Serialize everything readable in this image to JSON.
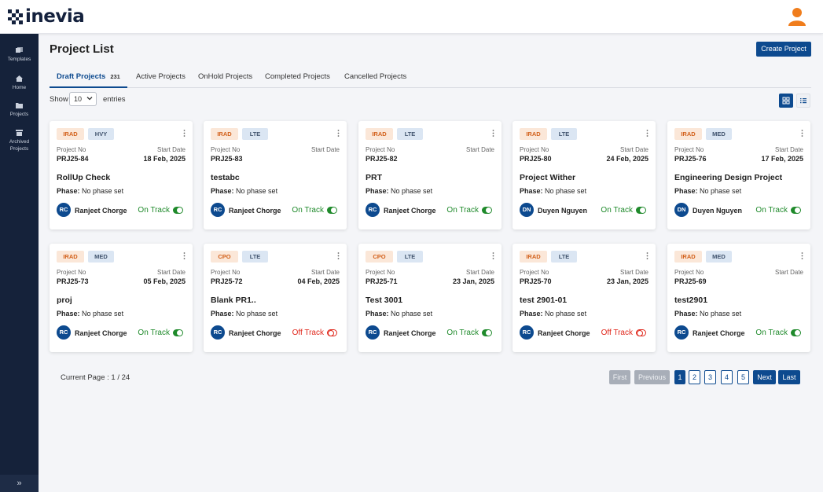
{
  "app": {
    "logo_text": "inevia"
  },
  "sidebar": {
    "items": [
      {
        "label": "Templates",
        "icon": "templates-icon"
      },
      {
        "label": "Home",
        "icon": "home-icon"
      },
      {
        "label": "Projects",
        "icon": "folder-icon"
      },
      {
        "label": "Archived Projects",
        "icon": "archive-icon"
      }
    ],
    "expand_icon": "»"
  },
  "page": {
    "title": "Project List",
    "create_label": "Create Project"
  },
  "tabs": [
    {
      "label": "Draft Projects",
      "count": "231",
      "active": true
    },
    {
      "label": "Active Projects"
    },
    {
      "label": "OnHold Projects"
    },
    {
      "label": "Completed Projects"
    },
    {
      "label": "Cancelled Projects"
    }
  ],
  "list_controls": {
    "show_label": "Show",
    "page_size": "10",
    "entries_label": "entries"
  },
  "card_labels": {
    "project_no": "Project No",
    "start_date": "Start Date",
    "phase": "Phase:"
  },
  "projects": [
    {
      "tag1": "IRAD",
      "tag2": "HVY",
      "no": "PRJ25-84",
      "date": "18 Feb, 2025",
      "name": "RollUp Check",
      "phase": "No phase set",
      "initials": "RC",
      "owner": "Ranjeet Chorge",
      "status": "On Track"
    },
    {
      "tag1": "IRAD",
      "tag2": "LTE",
      "no": "PRJ25-83",
      "date": "",
      "name": "testabc",
      "phase": "No phase set",
      "initials": "RC",
      "owner": "Ranjeet Chorge",
      "status": "On Track"
    },
    {
      "tag1": "IRAD",
      "tag2": "LTE",
      "no": "PRJ25-82",
      "date": "",
      "name": "PRT",
      "phase": "No phase set",
      "initials": "RC",
      "owner": "Ranjeet Chorge",
      "status": "On Track"
    },
    {
      "tag1": "IRAD",
      "tag2": "LTE",
      "no": "PRJ25-80",
      "date": "24 Feb, 2025",
      "name": "Project Wither",
      "phase": "No phase set",
      "initials": "DN",
      "owner": "Duyen Nguyen",
      "status": "On Track"
    },
    {
      "tag1": "IRAD",
      "tag2": "MED",
      "no": "PRJ25-76",
      "date": "17 Feb, 2025",
      "name": "Engineering Design Project",
      "phase": "No phase set",
      "initials": "DN",
      "owner": "Duyen Nguyen",
      "status": "On Track"
    },
    {
      "tag1": "IRAD",
      "tag2": "MED",
      "no": "PRJ25-73",
      "date": "05 Feb, 2025",
      "name": "proj",
      "phase": "No phase set",
      "initials": "RC",
      "owner": "Ranjeet Chorge",
      "status": "On Track"
    },
    {
      "tag1": "CPO",
      "tag2": "LTE",
      "no": "PRJ25-72",
      "date": "04 Feb, 2025",
      "name": "Blank PR1..",
      "phase": "No phase set",
      "initials": "RC",
      "owner": "Ranjeet Chorge",
      "status": "Off Track"
    },
    {
      "tag1": "CPO",
      "tag2": "LTE",
      "no": "PRJ25-71",
      "date": "23 Jan, 2025",
      "name": "Test 3001",
      "phase": "No phase set",
      "initials": "RC",
      "owner": "Ranjeet Chorge",
      "status": "On Track"
    },
    {
      "tag1": "IRAD",
      "tag2": "LTE",
      "no": "PRJ25-70",
      "date": "23 Jan, 2025",
      "name": "test 2901-01",
      "phase": "No phase set",
      "initials": "RC",
      "owner": "Ranjeet Chorge",
      "status": "Off Track"
    },
    {
      "tag1": "IRAD",
      "tag2": "MED",
      "no": "PRJ25-69",
      "date": "",
      "name": "test2901",
      "phase": "No phase set",
      "initials": "RC",
      "owner": "Ranjeet Chorge",
      "status": "On Track"
    }
  ],
  "pagination": {
    "current_page_text": "Current Page : 1 / 24",
    "first": "First",
    "previous": "Previous",
    "pages": [
      "1",
      "2",
      "3",
      "4",
      "5"
    ],
    "next": "Next",
    "last": "Last"
  },
  "colors": {
    "primary": "#0d4a8f",
    "sidebar": "#15223a",
    "on_track": "#1f8a2b",
    "off_track": "#e0271b"
  }
}
